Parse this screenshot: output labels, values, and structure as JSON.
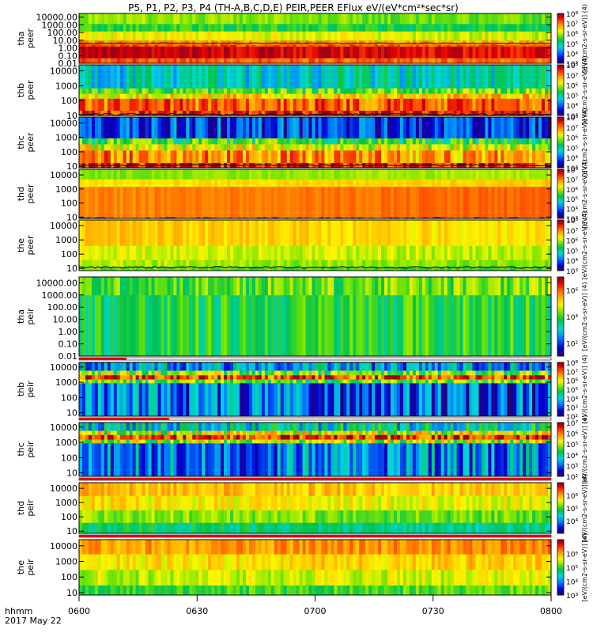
{
  "chart_data": {
    "type": "heatmap",
    "title": "P5, P1, P2, P3, P4 (TH-A,B,C,D,E) PEIR,PEER EFlux eV/(eV*cm²*sec*sr)",
    "xaxis": {
      "ticks": [
        "0600",
        "0630",
        "0700",
        "0730",
        "0800"
      ],
      "range": [
        "06:00",
        "08:00"
      ],
      "label_lines": [
        "hhmm",
        "2017 May 22"
      ]
    },
    "colorbar_label": "[eV/(cm2-s-sr-eV)] (4)",
    "panels": [
      {
        "name": "tha peer",
        "probe": "tha",
        "species": "peer",
        "ylabel": [
          "tha",
          "peer"
        ],
        "yscale": "log",
        "yrange": [
          0.01,
          30000
        ],
        "yticks": [
          "10000.00",
          "1000.00",
          "100.00",
          "10.00",
          "1.00",
          "0.10",
          "0.01"
        ],
        "cbticks": [
          "10⁸",
          "10⁷",
          "10⁶",
          "10⁵",
          "10⁴",
          "10³"
        ],
        "cbrange": [
          3,
          8
        ],
        "bands": [
          {
            "from": 0.01,
            "to": 0.05,
            "level": 0.86
          },
          {
            "from": 0.05,
            "to": 1.6,
            "level": 0.97
          },
          {
            "from": 1.6,
            "to": 2.8,
            "level": 0.88
          },
          {
            "from": 2.8,
            "to": 10,
            "level": 0.8
          },
          {
            "from": 10,
            "to": 150,
            "level": 0.66
          },
          {
            "from": 150,
            "to": 1400,
            "level": 0.5
          },
          {
            "from": 1400,
            "to": 30000,
            "level": 0.58
          }
        ],
        "noise": 0.06,
        "line": 4
      },
      {
        "name": "thb peer",
        "probe": "thb",
        "species": "peer",
        "ylabel": [
          "thb",
          "peer"
        ],
        "yscale": "log",
        "yrange": [
          10,
          25000
        ],
        "yticks": [
          "10000",
          "1000",
          "100",
          "10"
        ],
        "cbticks": [
          "10⁸",
          "10⁷",
          "10⁶",
          "10⁵",
          "10⁴",
          "10³"
        ],
        "cbrange": [
          3,
          8
        ],
        "bands": [
          {
            "from": 10,
            "to": 22,
            "level": 0.9
          },
          {
            "from": 22,
            "to": 140,
            "level": 0.82
          },
          {
            "from": 140,
            "to": 300,
            "level": 0.68
          },
          {
            "from": 300,
            "to": 700,
            "level": 0.52
          },
          {
            "from": 700,
            "to": 25000,
            "level": 0.34
          }
        ],
        "noise": 0.12,
        "line": 12
      },
      {
        "name": "thc peer",
        "probe": "thc",
        "species": "peer",
        "ylabel": [
          "thc",
          "peer"
        ],
        "yscale": "log",
        "yrange": [
          8,
          25000
        ],
        "yticks": [
          "10000",
          "1000",
          "100",
          "10"
        ],
        "cbticks": [
          "10⁸",
          "10⁷",
          "10⁶",
          "10⁵",
          "10⁴",
          "10³"
        ],
        "cbrange": [
          3,
          8
        ],
        "bands": [
          {
            "from": 8,
            "to": 18,
            "level": 0.92
          },
          {
            "from": 18,
            "to": 130,
            "level": 0.8
          },
          {
            "from": 130,
            "to": 350,
            "level": 0.66
          },
          {
            "from": 350,
            "to": 900,
            "level": 0.5
          },
          {
            "from": 900,
            "to": 25000,
            "level": 0.18
          }
        ],
        "noise": 0.14,
        "line": 12
      },
      {
        "name": "thd peer",
        "probe": "thd",
        "species": "peer",
        "ylabel": [
          "thd",
          "peer"
        ],
        "yscale": "log",
        "yrange": [
          8,
          25000
        ],
        "yticks": [
          "10000",
          "1000",
          "100",
          "10"
        ],
        "cbticks": [
          "10⁸",
          "10⁷",
          "10⁶",
          "10⁵",
          "10⁴",
          "10³"
        ],
        "cbrange": [
          3,
          8
        ],
        "bands": [
          {
            "from": 8,
            "to": 1500,
            "level": 0.8
          },
          {
            "from": 1500,
            "to": 5000,
            "level": 0.68
          },
          {
            "from": 5000,
            "to": 25000,
            "level": 0.56
          }
        ],
        "noise": 0.03,
        "line": 8
      },
      {
        "name": "the peer",
        "probe": "the",
        "species": "peer",
        "ylabel": [
          "the",
          "peer"
        ],
        "yscale": "log",
        "yrange": [
          7,
          25000
        ],
        "yticks": [
          "10000",
          "1000",
          "100",
          "10"
        ],
        "cbticks": [
          "10⁸",
          "10⁷",
          "10⁶",
          "10⁵",
          "10⁴",
          "10³"
        ],
        "cbrange": [
          3,
          8
        ],
        "bands": [
          {
            "from": 7,
            "to": 14,
            "level": 0.55
          },
          {
            "from": 14,
            "to": 40,
            "level": 0.6
          },
          {
            "from": 40,
            "to": 400,
            "level": 0.64
          },
          {
            "from": 400,
            "to": 25000,
            "level": 0.72
          }
        ],
        "noise": 0.05,
        "line": 12
      },
      {
        "name": "tha peir",
        "probe": "tha",
        "species": "peir",
        "ylabel": [
          "tha",
          "peir"
        ],
        "yscale": "log",
        "yrange": [
          0.01,
          30000
        ],
        "yticks": [
          "10000.00",
          "1000.00",
          "100.00",
          "10.00",
          "1.00",
          "0.10",
          "0.01"
        ],
        "cbticks": [
          "10⁶",
          "10⁴",
          "10²"
        ],
        "cbrange": [
          1,
          7
        ],
        "bands": [
          {
            "from": 0.01,
            "to": 1000,
            "level": 0.46
          },
          {
            "from": 1000,
            "to": 30000,
            "level": 0.52
          }
        ],
        "noise": 0.1,
        "line": 0
      },
      {
        "name": "thb peir",
        "probe": "thb",
        "species": "peir",
        "ylabel": [
          "thb",
          "peir"
        ],
        "yscale": "log",
        "yrange": [
          6,
          20000
        ],
        "yticks": [
          "10000",
          "1000",
          "100",
          "10"
        ],
        "cbticks": [
          "10⁸",
          "10⁷",
          "10⁶",
          "10⁵",
          "10⁴",
          "10³",
          "10²"
        ],
        "cbrange": [
          2,
          8
        ],
        "bands": [
          {
            "from": 6,
            "to": 900,
            "level": 0.22
          },
          {
            "from": 900,
            "to": 1600,
            "level": 0.55
          },
          {
            "from": 1600,
            "to": 3000,
            "level": 0.9
          },
          {
            "from": 3000,
            "to": 6000,
            "level": 0.6
          },
          {
            "from": 6000,
            "to": 20000,
            "level": 0.3
          }
        ],
        "noise": 0.18,
        "line": 0
      },
      {
        "name": "thc peir",
        "probe": "thc",
        "species": "peir",
        "ylabel": [
          "thc",
          "peir"
        ],
        "yscale": "log",
        "yrange": [
          6,
          20000
        ],
        "yticks": [
          "10000",
          "1000",
          "100",
          "10"
        ],
        "cbticks": [
          "10⁷",
          "10⁶",
          "10⁵",
          "10⁴",
          "10³",
          "10²"
        ],
        "cbrange": [
          2,
          7
        ],
        "bands": [
          {
            "from": 6,
            "to": 900,
            "level": 0.22
          },
          {
            "from": 900,
            "to": 1600,
            "level": 0.58
          },
          {
            "from": 1600,
            "to": 3200,
            "level": 0.88
          },
          {
            "from": 3200,
            "to": 6000,
            "level": 0.62
          },
          {
            "from": 6000,
            "to": 20000,
            "level": 0.34
          }
        ],
        "noise": 0.18,
        "line": 0
      },
      {
        "name": "thd peir",
        "probe": "thd",
        "species": "peir",
        "ylabel": [
          "thd",
          "peir"
        ],
        "yscale": "log",
        "yrange": [
          7,
          25000
        ],
        "yticks": [
          "10000",
          "1000",
          "100",
          "10"
        ],
        "cbticks": [
          "10⁶",
          "10⁵",
          "10⁴"
        ],
        "cbrange": [
          3,
          7
        ],
        "bands": [
          {
            "from": 7,
            "to": 40,
            "level": 0.45
          },
          {
            "from": 40,
            "to": 300,
            "level": 0.58
          },
          {
            "from": 300,
            "to": 3000,
            "level": 0.68
          },
          {
            "from": 3000,
            "to": 25000,
            "level": 0.74
          }
        ],
        "noise": 0.07,
        "line": 0
      },
      {
        "name": "the peir",
        "probe": "the",
        "species": "peir",
        "ylabel": [
          "the",
          "peir"
        ],
        "yscale": "log",
        "yrange": [
          7,
          25000
        ],
        "yticks": [
          "10000",
          "1000",
          "100",
          "10"
        ],
        "cbticks": [
          "10⁶",
          "10⁵",
          "10⁴",
          "10³"
        ],
        "cbrange": [
          3,
          7
        ],
        "bands": [
          {
            "from": 7,
            "to": 30,
            "level": 0.5
          },
          {
            "from": 30,
            "to": 300,
            "level": 0.6
          },
          {
            "from": 300,
            "to": 3000,
            "level": 0.68
          },
          {
            "from": 3000,
            "to": 25000,
            "level": 0.76
          }
        ],
        "noise": 0.07,
        "line": 0
      }
    ]
  }
}
